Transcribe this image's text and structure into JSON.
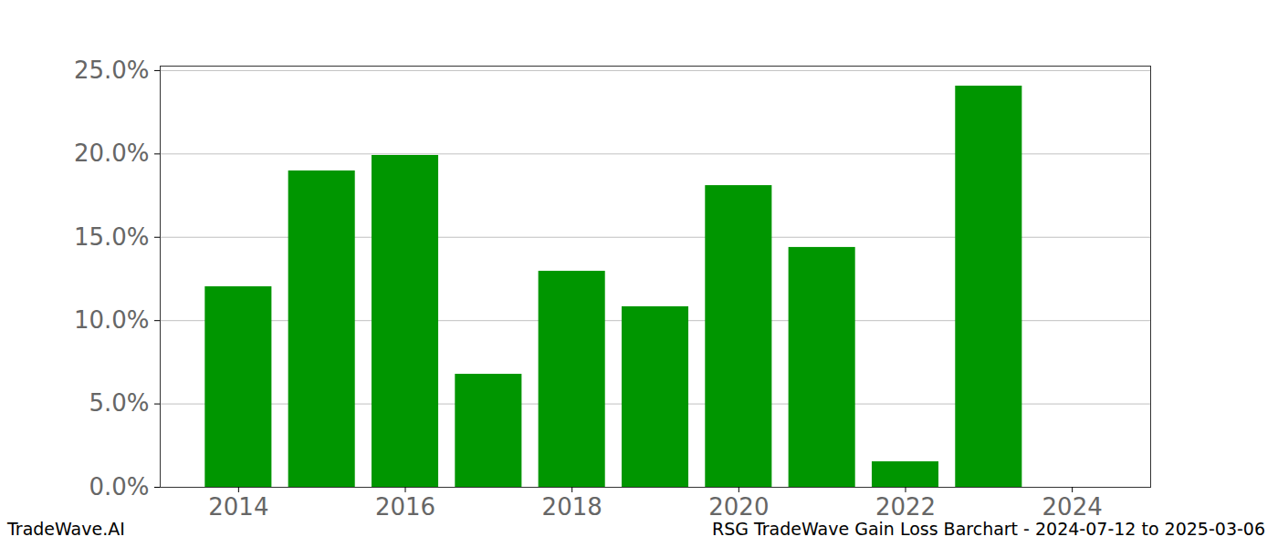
{
  "chart_data": {
    "type": "bar",
    "title": "RSG TradeWave Gain Loss Barchart - 2024-07-12 to 2025-03-06",
    "annotations": [
      "TradeWave.AI"
    ],
    "x": [
      2014,
      2015,
      2016,
      2017,
      2018,
      2019,
      2020,
      2021,
      2022,
      2023,
      2024
    ],
    "values": [
      12.03,
      18.98,
      19.91,
      6.78,
      12.96,
      10.83,
      18.1,
      14.39,
      1.53,
      24.07,
      0
    ],
    "color": "#009600",
    "xlim": [
      2013.06,
      2024.94
    ],
    "xticks": [
      2014,
      2016,
      2018,
      2020,
      2022,
      2024
    ],
    "ylim": [
      0,
      25.27
    ],
    "yticks": [
      {
        "value": 0,
        "label": "0.0%"
      },
      {
        "value": 5,
        "label": "5.0%"
      },
      {
        "value": 10,
        "label": "10.0%"
      },
      {
        "value": 15,
        "label": "15.0%"
      },
      {
        "value": 20,
        "label": "20.0%"
      },
      {
        "value": 25,
        "label": "25.0%"
      }
    ],
    "grid": true
  }
}
